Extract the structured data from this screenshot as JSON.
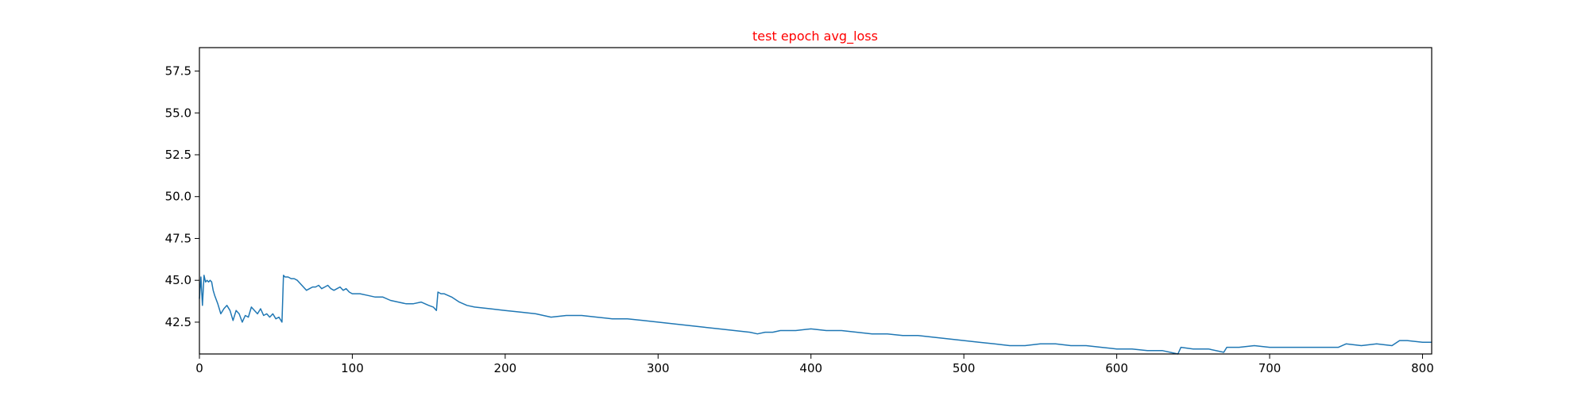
{
  "chart_data": {
    "type": "line",
    "title": "test epoch avg_loss",
    "title_color": "#ff0000",
    "xlabel": "",
    "ylabel": "",
    "xlim": [
      0,
      806
    ],
    "ylim": [
      40.6,
      58.9
    ],
    "x_ticks": [
      "0",
      "100",
      "200",
      "300",
      "400",
      "500",
      "600",
      "700",
      "800"
    ],
    "y_ticks": [
      "42.5",
      "45.0",
      "47.5",
      "50.0",
      "52.5",
      "55.0",
      "57.5"
    ],
    "grid": false,
    "legend": "none",
    "series": [
      {
        "color": "#1f77b4",
        "x": [
          0,
          1,
          2,
          3,
          4,
          5,
          6,
          7,
          8,
          9,
          10,
          12,
          14,
          16,
          18,
          20,
          22,
          24,
          26,
          28,
          30,
          32,
          34,
          36,
          38,
          40,
          42,
          44,
          46,
          48,
          50,
          52,
          54,
          55,
          56,
          58,
          60,
          62,
          64,
          66,
          68,
          70,
          72,
          74,
          76,
          78,
          80,
          82,
          84,
          86,
          88,
          90,
          92,
          94,
          96,
          98,
          100,
          105,
          110,
          115,
          120,
          125,
          130,
          135,
          140,
          145,
          150,
          153,
          155,
          156,
          158,
          160,
          165,
          170,
          175,
          180,
          190,
          200,
          210,
          220,
          230,
          240,
          250,
          260,
          270,
          280,
          290,
          300,
          310,
          320,
          330,
          340,
          350,
          360,
          365,
          370,
          375,
          380,
          390,
          400,
          410,
          420,
          430,
          440,
          450,
          460,
          470,
          480,
          490,
          500,
          510,
          520,
          530,
          540,
          550,
          560,
          570,
          580,
          590,
          600,
          610,
          620,
          630,
          640,
          642,
          650,
          660,
          670,
          672,
          680,
          690,
          700,
          710,
          720,
          730,
          740,
          745,
          750,
          760,
          770,
          780,
          785,
          790,
          800,
          806
        ],
        "y": [
          43.9,
          45.2,
          43.5,
          45.3,
          44.9,
          45.0,
          44.9,
          45.0,
          44.9,
          44.4,
          44.1,
          43.6,
          43.0,
          43.3,
          43.5,
          43.2,
          42.6,
          43.2,
          43.0,
          42.5,
          42.9,
          42.8,
          43.4,
          43.2,
          43.0,
          43.3,
          42.9,
          43.0,
          42.8,
          43.0,
          42.7,
          42.8,
          42.5,
          45.3,
          45.2,
          45.2,
          45.1,
          45.1,
          45.0,
          44.8,
          44.6,
          44.4,
          44.5,
          44.6,
          44.6,
          44.7,
          44.5,
          44.6,
          44.7,
          44.5,
          44.4,
          44.5,
          44.6,
          44.4,
          44.5,
          44.3,
          44.2,
          44.2,
          44.1,
          44.0,
          44.0,
          43.8,
          43.7,
          43.6,
          43.6,
          43.7,
          43.5,
          43.4,
          43.2,
          44.3,
          44.2,
          44.2,
          44.0,
          43.7,
          43.5,
          43.4,
          43.3,
          43.2,
          43.1,
          43.0,
          42.8,
          42.9,
          42.9,
          42.8,
          42.7,
          42.7,
          42.6,
          42.5,
          42.4,
          42.3,
          42.2,
          42.1,
          42.0,
          41.9,
          41.8,
          41.9,
          41.9,
          42.0,
          42.0,
          42.1,
          42.0,
          42.0,
          41.9,
          41.8,
          41.8,
          41.7,
          41.7,
          41.6,
          41.5,
          41.4,
          41.3,
          41.2,
          41.1,
          41.1,
          41.2,
          41.2,
          41.1,
          41.1,
          41.0,
          40.9,
          40.9,
          40.8,
          40.8,
          40.6,
          41.0,
          40.9,
          40.9,
          40.7,
          41.0,
          41.0,
          41.1,
          41.0,
          41.0,
          41.0,
          41.0,
          41.0,
          41.0,
          41.2,
          41.1,
          41.2,
          41.1,
          41.4,
          41.4,
          41.3,
          41.3
        ]
      }
    ]
  }
}
